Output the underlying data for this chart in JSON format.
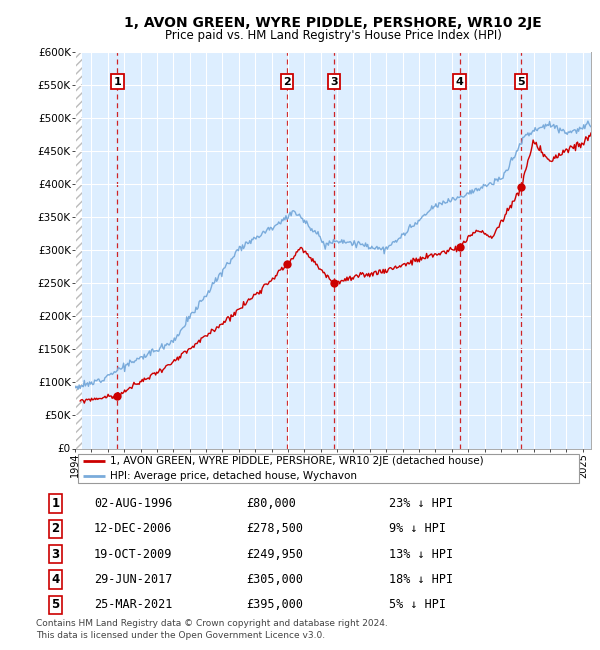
{
  "title": "1, AVON GREEN, WYRE PIDDLE, PERSHORE, WR10 2JE",
  "subtitle": "Price paid vs. HM Land Registry's House Price Index (HPI)",
  "legend_label_red": "1, AVON GREEN, WYRE PIDDLE, PERSHORE, WR10 2JE (detached house)",
  "legend_label_blue": "HPI: Average price, detached house, Wychavon",
  "footer1": "Contains HM Land Registry data © Crown copyright and database right 2024.",
  "footer2": "This data is licensed under the Open Government Licence v3.0.",
  "ylim": [
    0,
    600000
  ],
  "yticks": [
    0,
    50000,
    100000,
    150000,
    200000,
    250000,
    300000,
    350000,
    400000,
    450000,
    500000,
    550000,
    600000
  ],
  "ytick_labels": [
    "£0",
    "£50K",
    "£100K",
    "£150K",
    "£200K",
    "£250K",
    "£300K",
    "£350K",
    "£400K",
    "£450K",
    "£500K",
    "£550K",
    "£600K"
  ],
  "xlim_start": 1994.0,
  "xlim_end": 2025.5,
  "sales": [
    {
      "num": 1,
      "date": "02-AUG-1996",
      "year": 1996.58,
      "price": 80000
    },
    {
      "num": 2,
      "date": "12-DEC-2006",
      "year": 2006.95,
      "price": 278500
    },
    {
      "num": 3,
      "date": "19-OCT-2009",
      "year": 2009.8,
      "price": 249950
    },
    {
      "num": 4,
      "date": "29-JUN-2017",
      "year": 2017.49,
      "price": 305000
    },
    {
      "num": 5,
      "date": "25-MAR-2021",
      "year": 2021.23,
      "price": 395000
    }
  ],
  "table_rows": [
    {
      "num": 1,
      "date": "02-AUG-1996",
      "price": "£80,000",
      "pct": "23% ↓ HPI"
    },
    {
      "num": 2,
      "date": "12-DEC-2006",
      "price": "£278,500",
      "pct": "9% ↓ HPI"
    },
    {
      "num": 3,
      "date": "19-OCT-2009",
      "price": "£249,950",
      "pct": "13% ↓ HPI"
    },
    {
      "num": 4,
      "date": "29-JUN-2017",
      "price": "£305,000",
      "pct": "18% ↓ HPI"
    },
    {
      "num": 5,
      "date": "25-MAR-2021",
      "price": "£395,000",
      "pct": "5% ↓ HPI"
    }
  ],
  "red_color": "#cc0000",
  "blue_color": "#7aabdb",
  "bg_color": "#ddeeff",
  "grid_color": "#ffffff"
}
